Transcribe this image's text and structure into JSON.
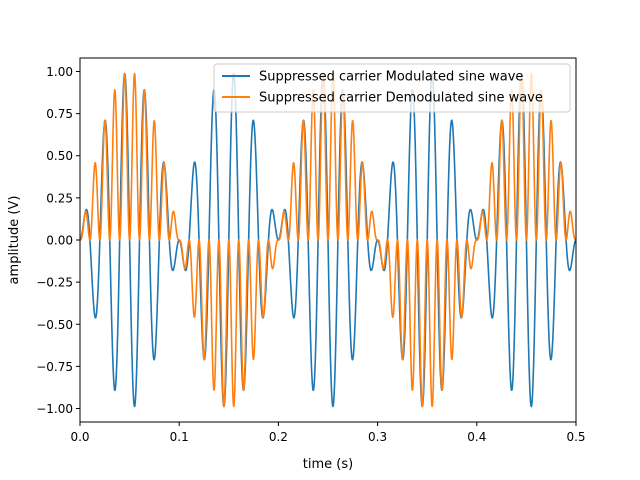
{
  "chart_data": {
    "type": "line",
    "xlabel": "time (s)",
    "ylabel": "amplitude (V)",
    "xlim": [
      0.0,
      0.5
    ],
    "ylim": [
      -1.08,
      1.08
    ],
    "grid": false,
    "legend_position": "top-right",
    "x_ticks": [
      {
        "value": 0.0,
        "label": "0.0"
      },
      {
        "value": 0.1,
        "label": "0.1"
      },
      {
        "value": 0.2,
        "label": "0.2"
      },
      {
        "value": 0.3,
        "label": "0.3"
      },
      {
        "value": 0.4,
        "label": "0.4"
      },
      {
        "value": 0.5,
        "label": "0.5"
      }
    ],
    "y_ticks": [
      {
        "value": -1.0,
        "label": "−1.00"
      },
      {
        "value": -0.75,
        "label": "−0.75"
      },
      {
        "value": -0.5,
        "label": "−0.50"
      },
      {
        "value": -0.25,
        "label": "−0.25"
      },
      {
        "value": 0.0,
        "label": "0.00"
      },
      {
        "value": 0.25,
        "label": "0.25"
      },
      {
        "value": 0.5,
        "label": "0.50"
      },
      {
        "value": 0.75,
        "label": "0.75"
      },
      {
        "value": 1.0,
        "label": "1.00"
      }
    ],
    "series": [
      {
        "name": "Suppressed carrier Modulated sine wave",
        "color": "#1f77b4",
        "function": "sin(2*pi*5*t) * sin(2*pi*50*t)",
        "carrier_frequency_hz": 50,
        "message_frequency_hz": 5,
        "t_range": [
          0.0,
          0.5
        ],
        "y_range": [
          -1.0,
          1.0
        ]
      },
      {
        "name": "Suppressed carrier Demodulated sine wave",
        "color": "#ff7f0e",
        "function": "sin(2*pi*5*t) * sin(2*pi*50*t)^2",
        "carrier_frequency_hz": 50,
        "message_frequency_hz": 5,
        "t_range": [
          0.0,
          0.5
        ],
        "y_range": [
          -1.0,
          1.0
        ]
      }
    ]
  }
}
